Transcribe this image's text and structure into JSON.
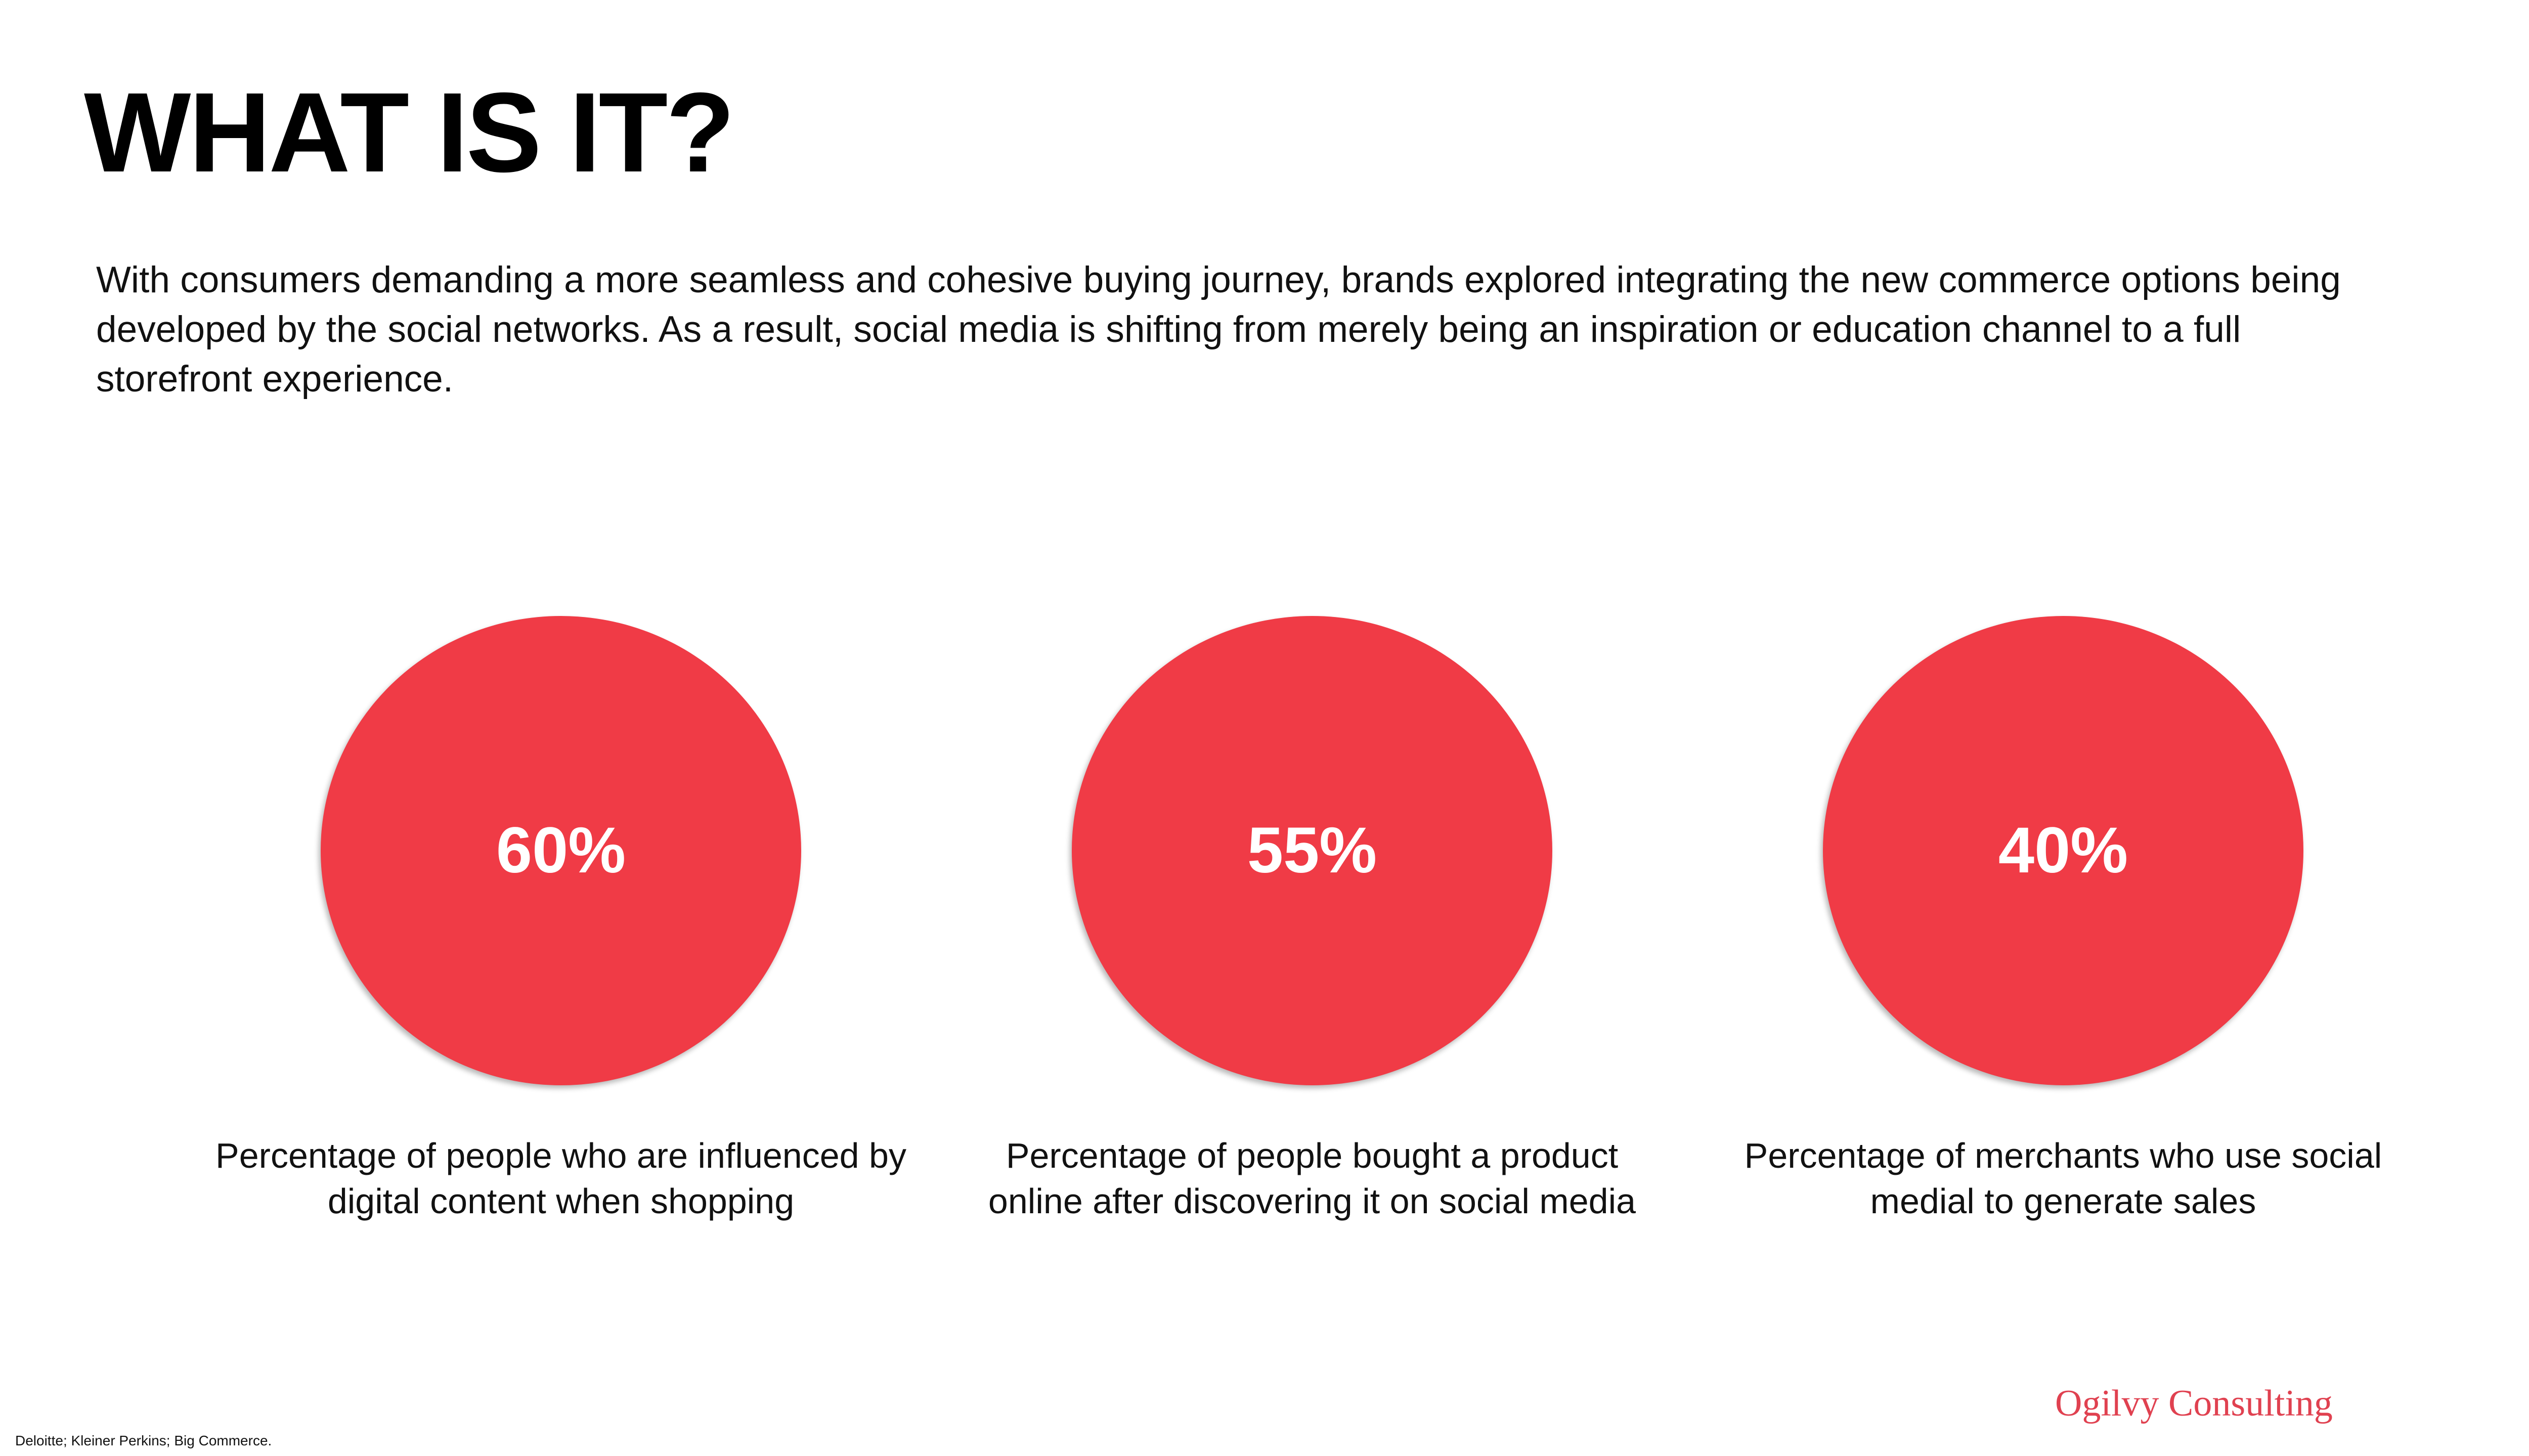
{
  "slide": {
    "title": "WHAT IS IT?",
    "intro": "With consumers demanding a more seamless and cohesive buying journey, brands explored integrating the new commerce options being developed by the social networks. As a result, social media is shifting from merely being an inspiration or education channel to a full storefront experience."
  },
  "stats": [
    {
      "value": "60%",
      "caption": "Percentage of people who are influenced by digital content when shopping"
    },
    {
      "value": "55%",
      "caption": "Percentage of people bought a product online after discovering it on social media"
    },
    {
      "value": "40%",
      "caption": "Percentage of merchants who use social medial to generate sales"
    }
  ],
  "footer": {
    "source": "Deloitte; Kleiner Perkins; Big Commerce.",
    "brand": "Ogilvy Consulting"
  },
  "colors": {
    "accent": "#f03b46",
    "brand_text": "#e04150",
    "text": "#111111",
    "background": "#ffffff"
  }
}
